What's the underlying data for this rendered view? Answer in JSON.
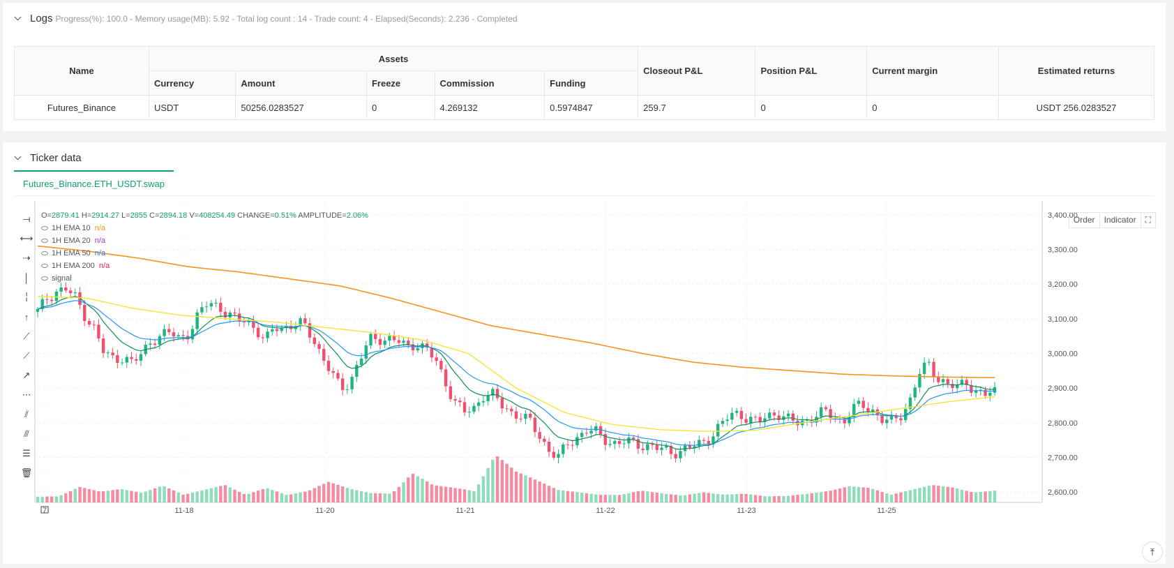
{
  "logs": {
    "title": "Logs",
    "status": "Progress(%): 100.0  - Memory usage(MB): 5.92 - Total log count : 14 - Trade count:  4 - Elapsed(Seconds): 2.236 - Completed"
  },
  "assets_table": {
    "headers": {
      "name": "Name",
      "assets": "Assets",
      "currency": "Currency",
      "amount": "Amount",
      "freeze": "Freeze",
      "commission": "Commission",
      "funding": "Funding",
      "closeout_pnl": "Closeout P&L",
      "position_pnl": "Position P&L",
      "current_margin": "Current margin",
      "estimated_returns": "Estimated returns"
    },
    "row": {
      "name": "Futures_Binance",
      "currency": "USDT",
      "amount": "50256.0283527",
      "freeze": "0",
      "commission": "4.269132",
      "funding": "0.5974847",
      "closeout_pnl": "259.7",
      "position_pnl": "0",
      "current_margin": "0",
      "estimated_returns": "USDT 256.0283527"
    }
  },
  "ticker": {
    "title": "Ticker data",
    "tab_label": "Futures_Binance.ETH_USDT.swap",
    "ohlc": {
      "o_label": "O=",
      "o": "2879.41",
      "h_label": "H=",
      "h": "2914.27",
      "l_label": "L=",
      "l": "2855",
      "c_label": "C=",
      "c": "2894.18",
      "v_label": "V=",
      "v": "408254.49",
      "change_label": "CHANGE=",
      "change": "0.51%",
      "amplitude_label": "AMPLITUDE=",
      "amplitude": "2.06%"
    },
    "indicators": [
      {
        "label": "1H EMA 10",
        "value": "n/a",
        "color": "#f59b00"
      },
      {
        "label": "1H EMA 20",
        "value": "n/a",
        "color": "#8e44ad"
      },
      {
        "label": "1H EMA 50",
        "value": "n/a",
        "color": "#2979ff"
      },
      {
        "label": "1H EMA 200",
        "value": "n/a",
        "color": "#e0254f"
      },
      {
        "label": "signal",
        "value": "",
        "color": "#555555"
      }
    ],
    "buttons": {
      "order": "Order",
      "indicator": "Indicator"
    }
  },
  "chart_data": {
    "type": "candlestick",
    "y_ticks": [
      "3,400.00",
      "3,300.00",
      "3,200.00",
      "3,100.00",
      "3,000.00",
      "2,900.00",
      "2,800.00",
      "2,700.00",
      "2,600.00"
    ],
    "ylim": [
      2570,
      3440
    ],
    "x_ticks": [
      "7",
      "11-18",
      "11-20",
      "11-21",
      "11-22",
      "11-23",
      "11-25"
    ],
    "close_path": [
      3120,
      3160,
      3180,
      3185,
      3160,
      3110,
      3070,
      3000,
      2985,
      2990,
      2970,
      3000,
      3040,
      3050,
      3060,
      3045,
      3060,
      3110,
      3150,
      3140,
      3110,
      3095,
      3100,
      3070,
      3030,
      3080,
      3075,
      3080,
      3085,
      3050,
      2990,
      2940,
      2900,
      2920,
      2980,
      3040,
      3045,
      3040,
      3035,
      3020,
      3030,
      3010,
      2980,
      2920,
      2860,
      2830,
      2840,
      2880,
      2880,
      2850,
      2830,
      2820,
      2800,
      2760,
      2720,
      2700,
      2740,
      2760,
      2780,
      2770,
      2750,
      2740,
      2745,
      2740,
      2735,
      2730,
      2720,
      2715,
      2720,
      2730,
      2740,
      2760,
      2790,
      2820,
      2830,
      2810,
      2800,
      2820,
      2830,
      2810,
      2800,
      2805,
      2820,
      2830,
      2820,
      2800,
      2840,
      2850,
      2840,
      2810,
      2800,
      2820,
      2860,
      2940,
      2970,
      2930,
      2910,
      2900,
      2920,
      2890,
      2880,
      2890
    ],
    "ema200_path": [
      3310,
      3295,
      3275,
      3250,
      3235,
      3215,
      3195,
      3160,
      3120,
      3080,
      3055,
      3030,
      3000,
      2975,
      2960,
      2950,
      2940,
      2935,
      2932,
      2930
    ],
    "ema50_path": [
      3165,
      3160,
      3130,
      3110,
      3100,
      3090,
      3075,
      3060,
      3040,
      3000,
      2900,
      2830,
      2795,
      2780,
      2775,
      2778,
      2800,
      2820,
      2840,
      2860,
      2875
    ],
    "volume_profile": [
      0.1,
      0.1,
      0.35,
      0.2,
      0.25,
      0.15,
      0.3,
      0.1,
      0.2,
      0.3,
      0.1,
      0.25,
      0.1,
      0.2,
      0.45,
      0.3,
      0.2,
      0.2,
      0.8,
      0.4,
      0.3,
      0.2,
      1.0,
      0.6,
      0.4,
      0.2,
      0.15,
      0.1,
      0.1,
      0.2,
      0.15,
      0.1,
      0.2,
      0.15,
      0.2,
      0.1,
      0.1,
      0.15,
      0.2,
      0.3,
      0.25,
      0.1,
      0.2,
      0.3,
      0.25,
      0.15,
      0.2
    ]
  }
}
